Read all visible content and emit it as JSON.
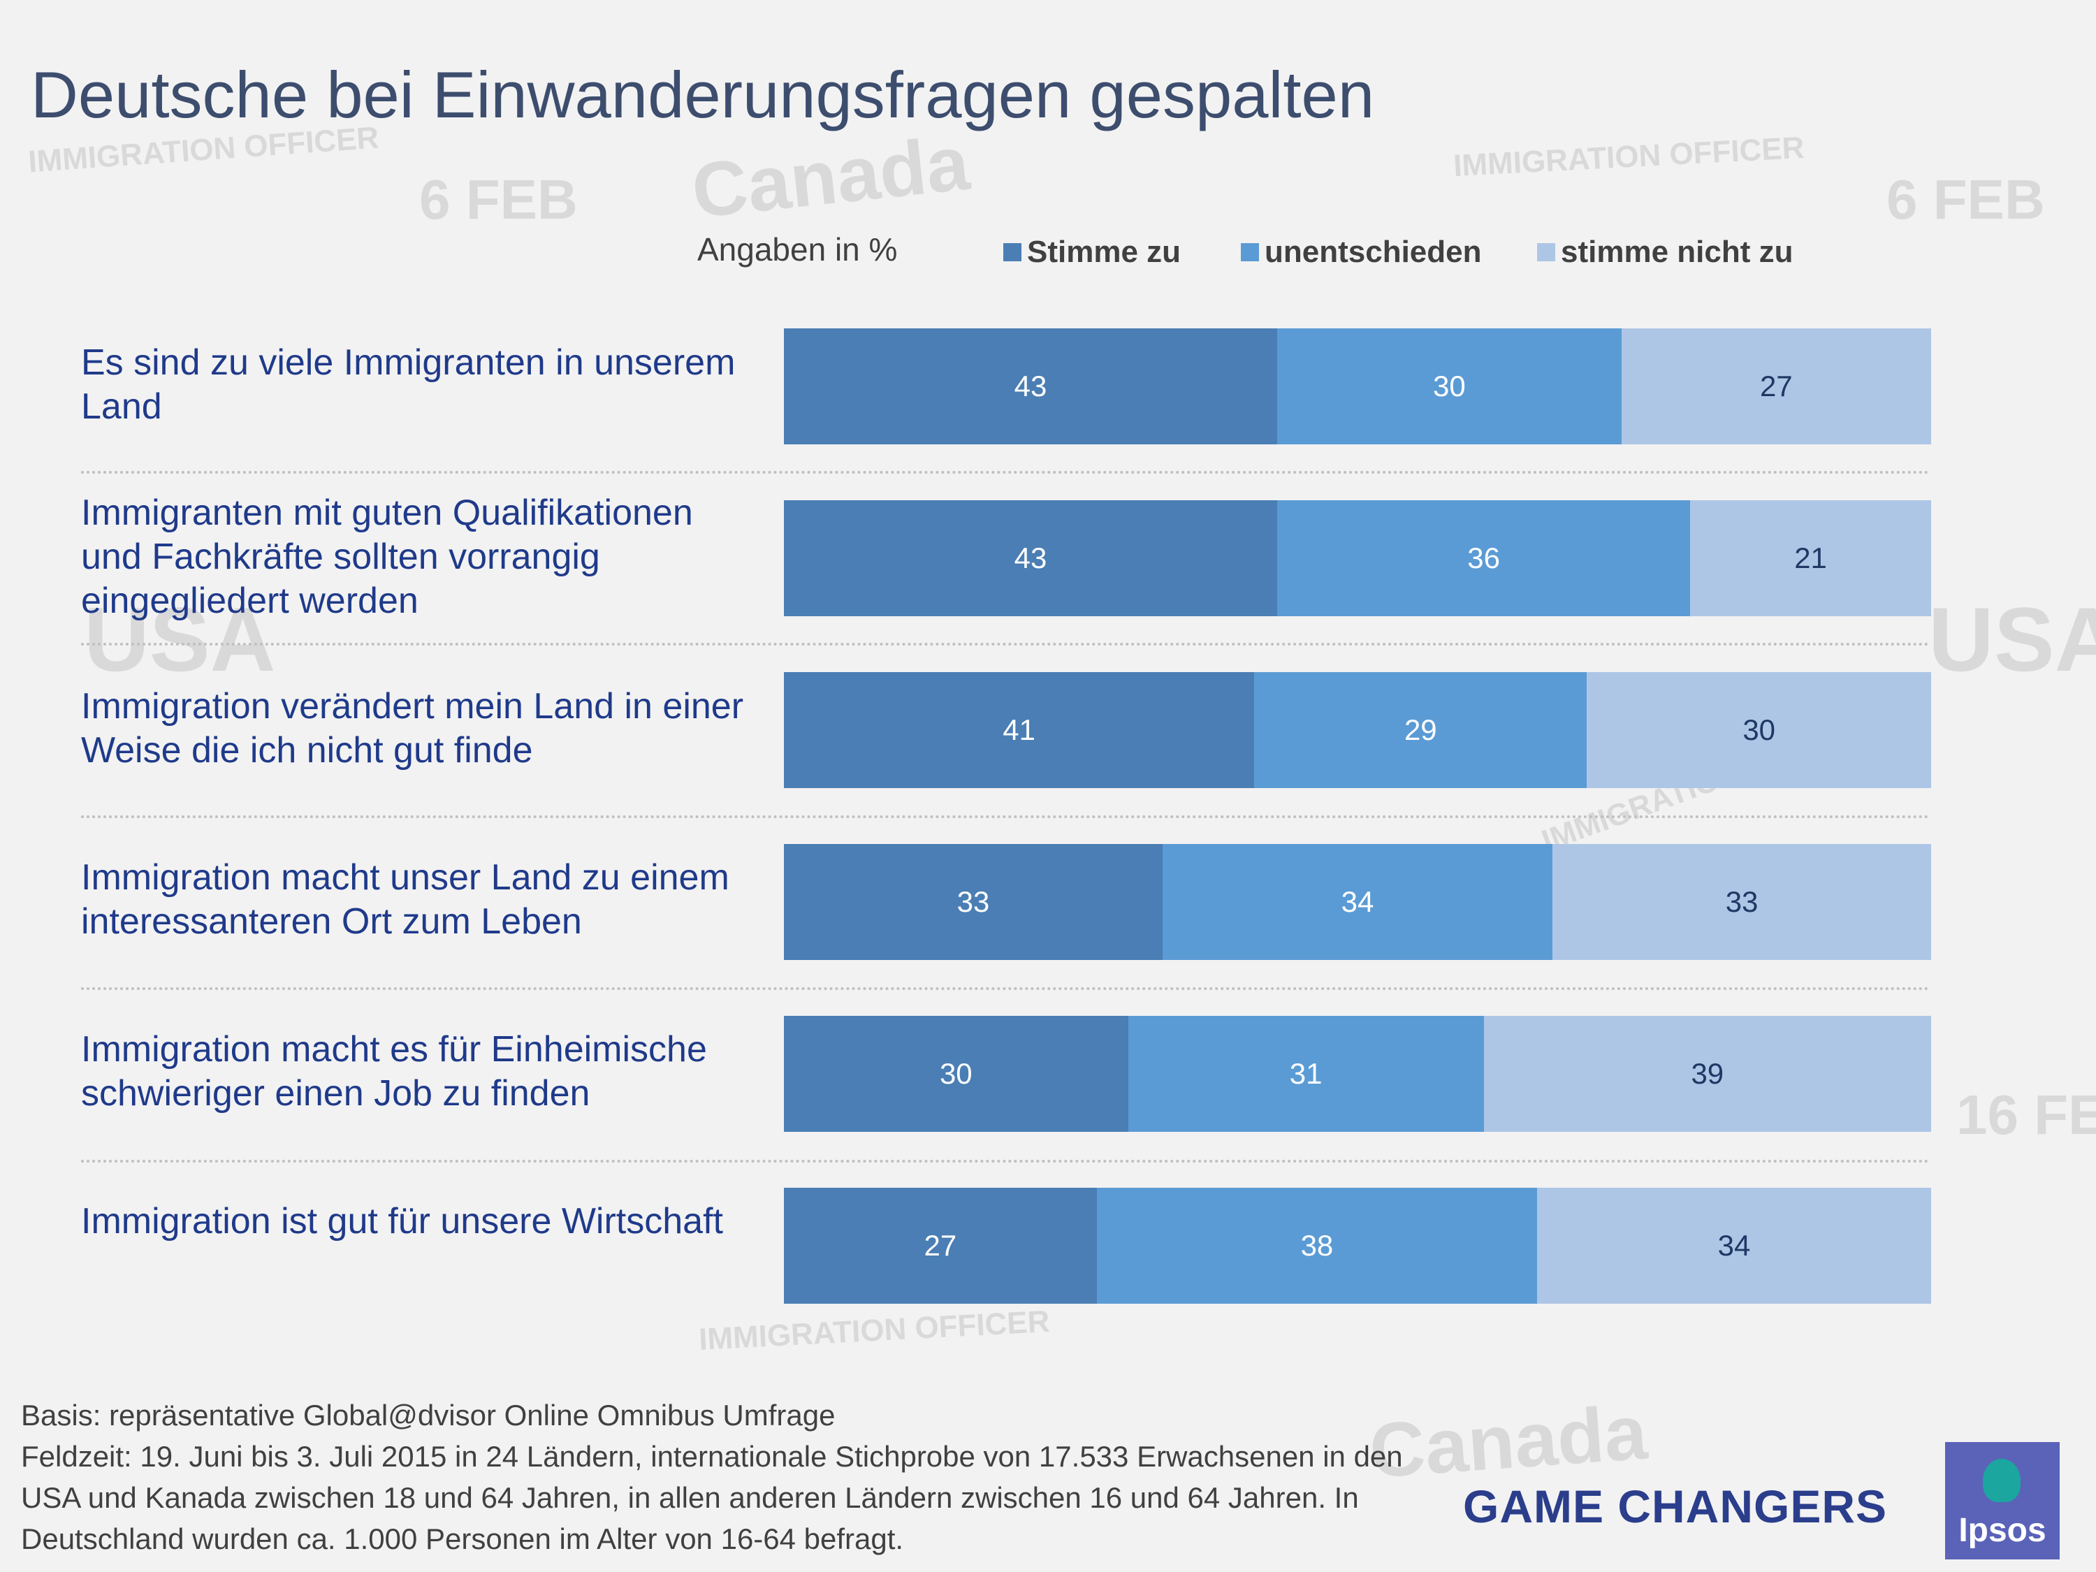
{
  "title": "Deutsche bei Einwanderungsfragen gespalten",
  "colors": {
    "stimme_zu": "#4a7eb4",
    "unentschieden": "#5b9bd5",
    "stimme_nicht_zu": "#aec6e6",
    "title": "#3d4d6e",
    "label": "#1f3a8a"
  },
  "chart_data": {
    "type": "bar",
    "orientation": "horizontal",
    "stacked": true,
    "title": "Deutsche bei Einwanderungsfragen gespalten",
    "unit_label": "Angaben in %",
    "xlim": [
      0,
      100
    ],
    "legend_position": "top",
    "categories": [
      "Es sind zu viele Immigranten in unserem Land",
      "Immigranten mit guten Qualifikationen und Fachkräfte sollten vorrangig eingegliedert werden",
      "Immigration verändert mein Land in einer Weise die ich nicht gut finde",
      "Immigration macht unser Land zu einem interessanteren Ort zum Leben",
      "Immigration macht es für Einheimische schwieriger einen Job zu finden",
      "Immigration ist gut für unsere Wirtschaft"
    ],
    "series": [
      {
        "name": "Stimme zu",
        "color": "#4a7eb4",
        "label_color": "#ffffff",
        "values": [
          43,
          43,
          41,
          33,
          30,
          27
        ]
      },
      {
        "name": "unentschieden",
        "color": "#5b9bd5",
        "label_color": "#ffffff",
        "values": [
          30,
          36,
          29,
          34,
          31,
          38
        ]
      },
      {
        "name": "stimme nicht zu",
        "color": "#aec6e6",
        "label_color": "#1f3864",
        "values": [
          27,
          21,
          30,
          33,
          39,
          34
        ]
      }
    ]
  },
  "footnote": [
    "Basis: repräsentative Global@dvisor Online Omnibus Umfrage",
    "Feldzeit: 19. Juni bis 3. Juli 2015 in 24 Ländern, internationale Stichprobe von 17.533 Erwachsenen in den USA und Kanada zwischen 18 und 64 Jahren, in allen anderen Ländern zwischen 16 und 64 Jahren. In Deutschland wurden ca. 1.000  Personen im Alter von 16-64 befragt."
  ],
  "branding": {
    "slogan": "GAME CHANGERS",
    "logo_text": "Ipsos"
  }
}
